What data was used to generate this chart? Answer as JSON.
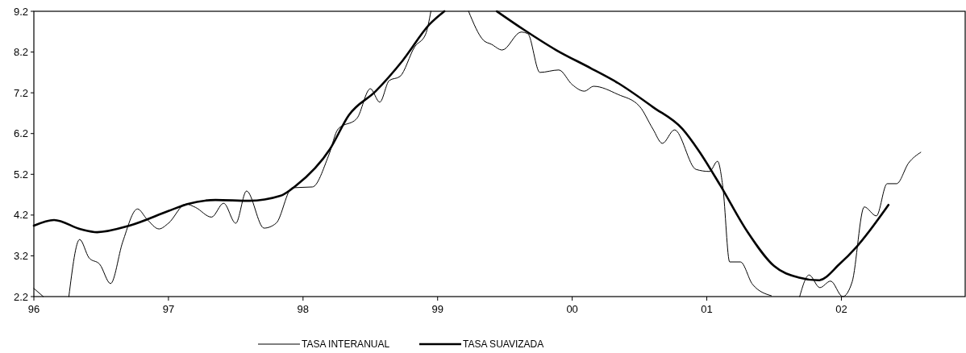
{
  "chart_data": {
    "type": "line",
    "xlim": [
      1996,
      2002.92
    ],
    "xticks": [
      {
        "value": 1996,
        "label": "96"
      },
      {
        "value": 1997,
        "label": "97"
      },
      {
        "value": 1998,
        "label": "98"
      },
      {
        "value": 1999,
        "label": "99"
      },
      {
        "value": 2000,
        "label": "00"
      },
      {
        "value": 2001,
        "label": "01"
      },
      {
        "value": 2002,
        "label": "02"
      }
    ],
    "ylim": [
      2.2,
      9.2
    ],
    "yticks": [
      2.2,
      3.2,
      4.2,
      5.2,
      6.2,
      7.2,
      8.2,
      9.2
    ],
    "grid": false,
    "legend": "bottom",
    "series": [
      {
        "name": "TASA INTERANUAL",
        "color": "#000000",
        "line_style": "solid",
        "x": [
          1996.0,
          1996.07,
          1996.17,
          1996.26,
          1996.34,
          1996.41,
          1996.49,
          1996.57,
          1996.66,
          1996.77,
          1996.84,
          1996.93,
          1997.0,
          1997.13,
          1997.2,
          1997.32,
          1997.41,
          1997.5,
          1997.58,
          1997.71,
          1997.8,
          1997.92,
          1998.07,
          1998.19,
          1998.26,
          1998.4,
          1998.5,
          1998.57,
          1998.64,
          1998.72,
          1998.83,
          1998.91,
          1998.95,
          1999.1,
          1999.23,
          1999.34,
          1999.4,
          1999.48,
          1999.62,
          1999.67,
          1999.76,
          1999.9,
          2000.0,
          2000.09,
          2000.16,
          2000.34,
          2000.5,
          2000.6,
          2000.67,
          2000.76,
          2000.92,
          2001.02,
          2001.08,
          2001.12,
          2001.17,
          2001.25,
          2001.34,
          2001.48,
          2001.58,
          2001.69,
          2001.76,
          2001.84,
          2001.92,
          2002.01,
          2002.08,
          2002.17,
          2002.26,
          2002.34,
          2002.41,
          2002.5,
          2002.59
        ],
        "values": [
          2.4,
          2.2,
          null,
          2.2,
          3.6,
          3.15,
          2.99,
          2.52,
          3.54,
          4.35,
          4.1,
          3.86,
          4.0,
          4.47,
          4.39,
          4.15,
          4.49,
          4.0,
          4.79,
          3.88,
          4.0,
          4.87,
          4.89,
          5.66,
          6.31,
          6.57,
          7.3,
          6.97,
          7.5,
          7.6,
          8.33,
          8.63,
          9.2,
          null,
          9.2,
          8.49,
          8.39,
          8.25,
          8.69,
          8.65,
          7.7,
          7.76,
          7.4,
          7.24,
          7.36,
          7.16,
          6.87,
          6.31,
          5.96,
          6.29,
          5.32,
          5.27,
          5.52,
          4.87,
          3.05,
          3.05,
          2.5,
          2.22,
          null,
          2.2,
          2.73,
          2.42,
          2.58,
          2.2,
          2.56,
          4.4,
          4.18,
          4.97,
          4.97,
          5.48,
          5.74
        ]
      },
      {
        "name": "TASA SUAVIZADA",
        "color": "#000000",
        "line_style": "solid",
        "x": [
          1996.0,
          1996.15,
          1996.35,
          1996.47,
          1996.71,
          1997.0,
          1997.14,
          1997.35,
          1997.6,
          1997.83,
          1997.95,
          1998.2,
          1998.34,
          1998.54,
          1998.74,
          1998.94,
          1999.05,
          1999.25,
          1999.44,
          1999.64,
          1999.88,
          2000.14,
          2000.34,
          2000.6,
          2000.82,
          2000.94,
          2001.1,
          2001.3,
          2001.5,
          2001.68,
          2001.83,
          2001.99,
          2002.11,
          2002.35
        ],
        "values": [
          3.94,
          4.08,
          3.85,
          3.78,
          3.94,
          4.3,
          4.47,
          4.57,
          4.55,
          4.67,
          4.93,
          5.82,
          6.65,
          7.24,
          7.99,
          8.88,
          9.2,
          null,
          9.2,
          8.75,
          8.25,
          7.8,
          7.44,
          6.85,
          6.31,
          5.78,
          4.93,
          3.8,
          2.95,
          2.67,
          2.6,
          3.01,
          3.41,
          4.45
        ]
      }
    ]
  }
}
